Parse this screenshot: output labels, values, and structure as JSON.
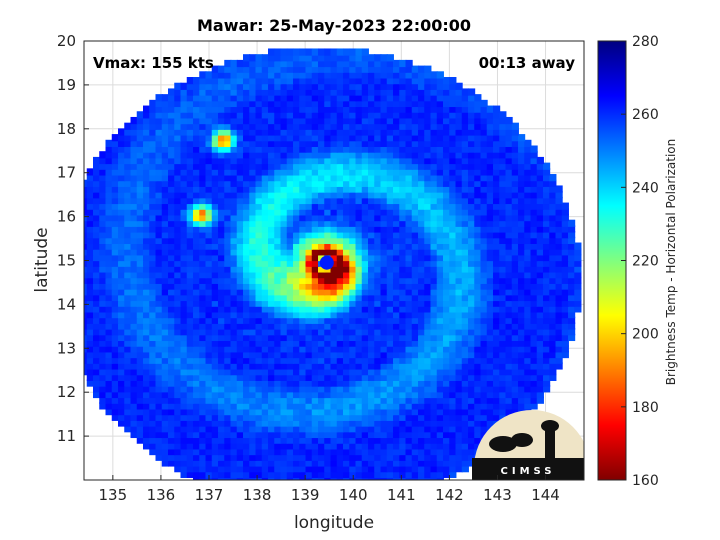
{
  "chart_data": {
    "type": "heatmap",
    "title": "Mawar: 25-May-2023 22:00:00",
    "xlabel": "longitude",
    "ylabel": "latitude",
    "xlim": [
      134.4,
      144.8
    ],
    "ylim": [
      10,
      20
    ],
    "x_ticks": [
      135,
      136,
      137,
      138,
      139,
      140,
      141,
      142,
      143,
      144
    ],
    "y_ticks": [
      11,
      12,
      13,
      14,
      15,
      16,
      17,
      18,
      19,
      20
    ],
    "grid": true,
    "annotations": {
      "vmax": "Vmax: 155 kts",
      "away": "00:13 away"
    },
    "colorbar": {
      "label": "Brightness Temp - Horizontal Polarization",
      "range": [
        160,
        280
      ],
      "ticks": [
        160,
        180,
        200,
        220,
        240,
        260,
        280
      ],
      "colormap": "jet"
    },
    "storm_center": {
      "lon": 139.45,
      "lat": 14.95
    },
    "swath": {
      "center_lon": 139.3,
      "center_lat": 14.6,
      "radius_deg": 5.25
    },
    "features": [
      {
        "name": "eye",
        "lon": 139.45,
        "lat": 14.95,
        "value": 262
      },
      {
        "name": "eyewall",
        "lon": 139.4,
        "lat": 14.95,
        "value": 165
      },
      {
        "name": "cell-north",
        "lon": 137.3,
        "lat": 17.75,
        "value": 195
      },
      {
        "name": "cell-west",
        "lon": 136.85,
        "lat": 16.05,
        "value": 190
      }
    ],
    "logo": "CIMSS"
  }
}
